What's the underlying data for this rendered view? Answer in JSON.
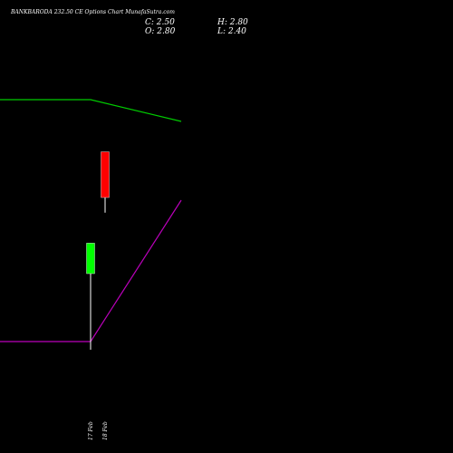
{
  "header": {
    "title": "BANKBARODA 232.50  CE Options  Chart MunafaSutra.com",
    "close": "C: 2.50",
    "high": "H: 2.80",
    "open": "O: 2.80",
    "low": "L: 2.40"
  },
  "colors": {
    "background": "#000000",
    "up_candle": "#00ff00",
    "down_candle": "#ff0000",
    "green_line": "#00cc00",
    "purple_line": "#bb00bb",
    "text": "#ffffff"
  },
  "chart_data": {
    "type": "candlestick",
    "categories": [
      "17 Feb",
      "18 Feb"
    ],
    "candles": [
      {
        "date": "17 Feb",
        "open": 2.0,
        "high": 2.2,
        "low": 1.5,
        "close": 2.2
      },
      {
        "date": "18 Feb",
        "open": 2.8,
        "high": 2.8,
        "low": 2.4,
        "close": 2.5
      }
    ],
    "ylim": [
      1.0,
      3.5
    ],
    "overlay_lines": [
      {
        "color": "#00cc00",
        "values": [
          18.0,
          18.0,
          17.2
        ]
      },
      {
        "color": "#bb00bb",
        "values": [
          9.1,
          9.1,
          14.3
        ]
      }
    ],
    "overlay_ylim": [
      6.0,
      20.0
    ],
    "grid": false
  }
}
